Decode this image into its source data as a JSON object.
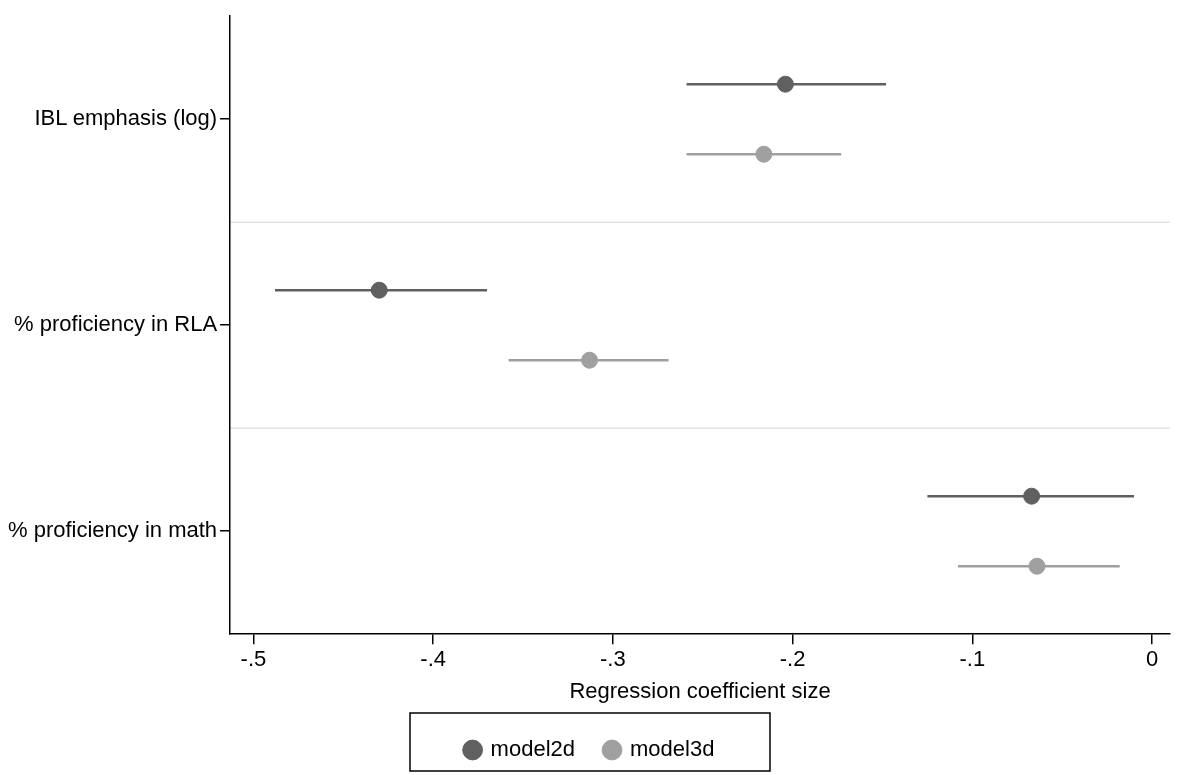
{
  "chart_data": {
    "type": "scatter",
    "orientation": "horizontal",
    "xlabel": "Regression coefficient size",
    "categories": [
      "IBL emphasis (log)",
      "% proficiency in RLA",
      "% proficiency in math"
    ],
    "series": [
      {
        "name": "model2d",
        "color": "#606060",
        "values": [
          -0.204,
          -0.43,
          -0.067
        ],
        "errors": [
          [
            -0.259,
            -0.148
          ],
          [
            -0.488,
            -0.37
          ],
          [
            -0.125,
            -0.01
          ]
        ]
      },
      {
        "name": "model3d",
        "color": "#a0a0a0",
        "values": [
          -0.216,
          -0.313,
          -0.064
        ],
        "errors": [
          [
            -0.259,
            -0.173
          ],
          [
            -0.358,
            -0.269
          ],
          [
            -0.108,
            -0.018
          ]
        ]
      }
    ],
    "xlim": [
      -0.513,
      0.01
    ],
    "xticks": [
      {
        "value": -0.5,
        "label": "-.5"
      },
      {
        "value": -0.4,
        "label": "-.4"
      },
      {
        "value": -0.3,
        "label": "-.3"
      },
      {
        "value": -0.2,
        "label": "-.2"
      },
      {
        "value": -0.1,
        "label": "-.1"
      },
      0
    ],
    "grid": "y",
    "legend": "bottom",
    "marker": "circle"
  }
}
